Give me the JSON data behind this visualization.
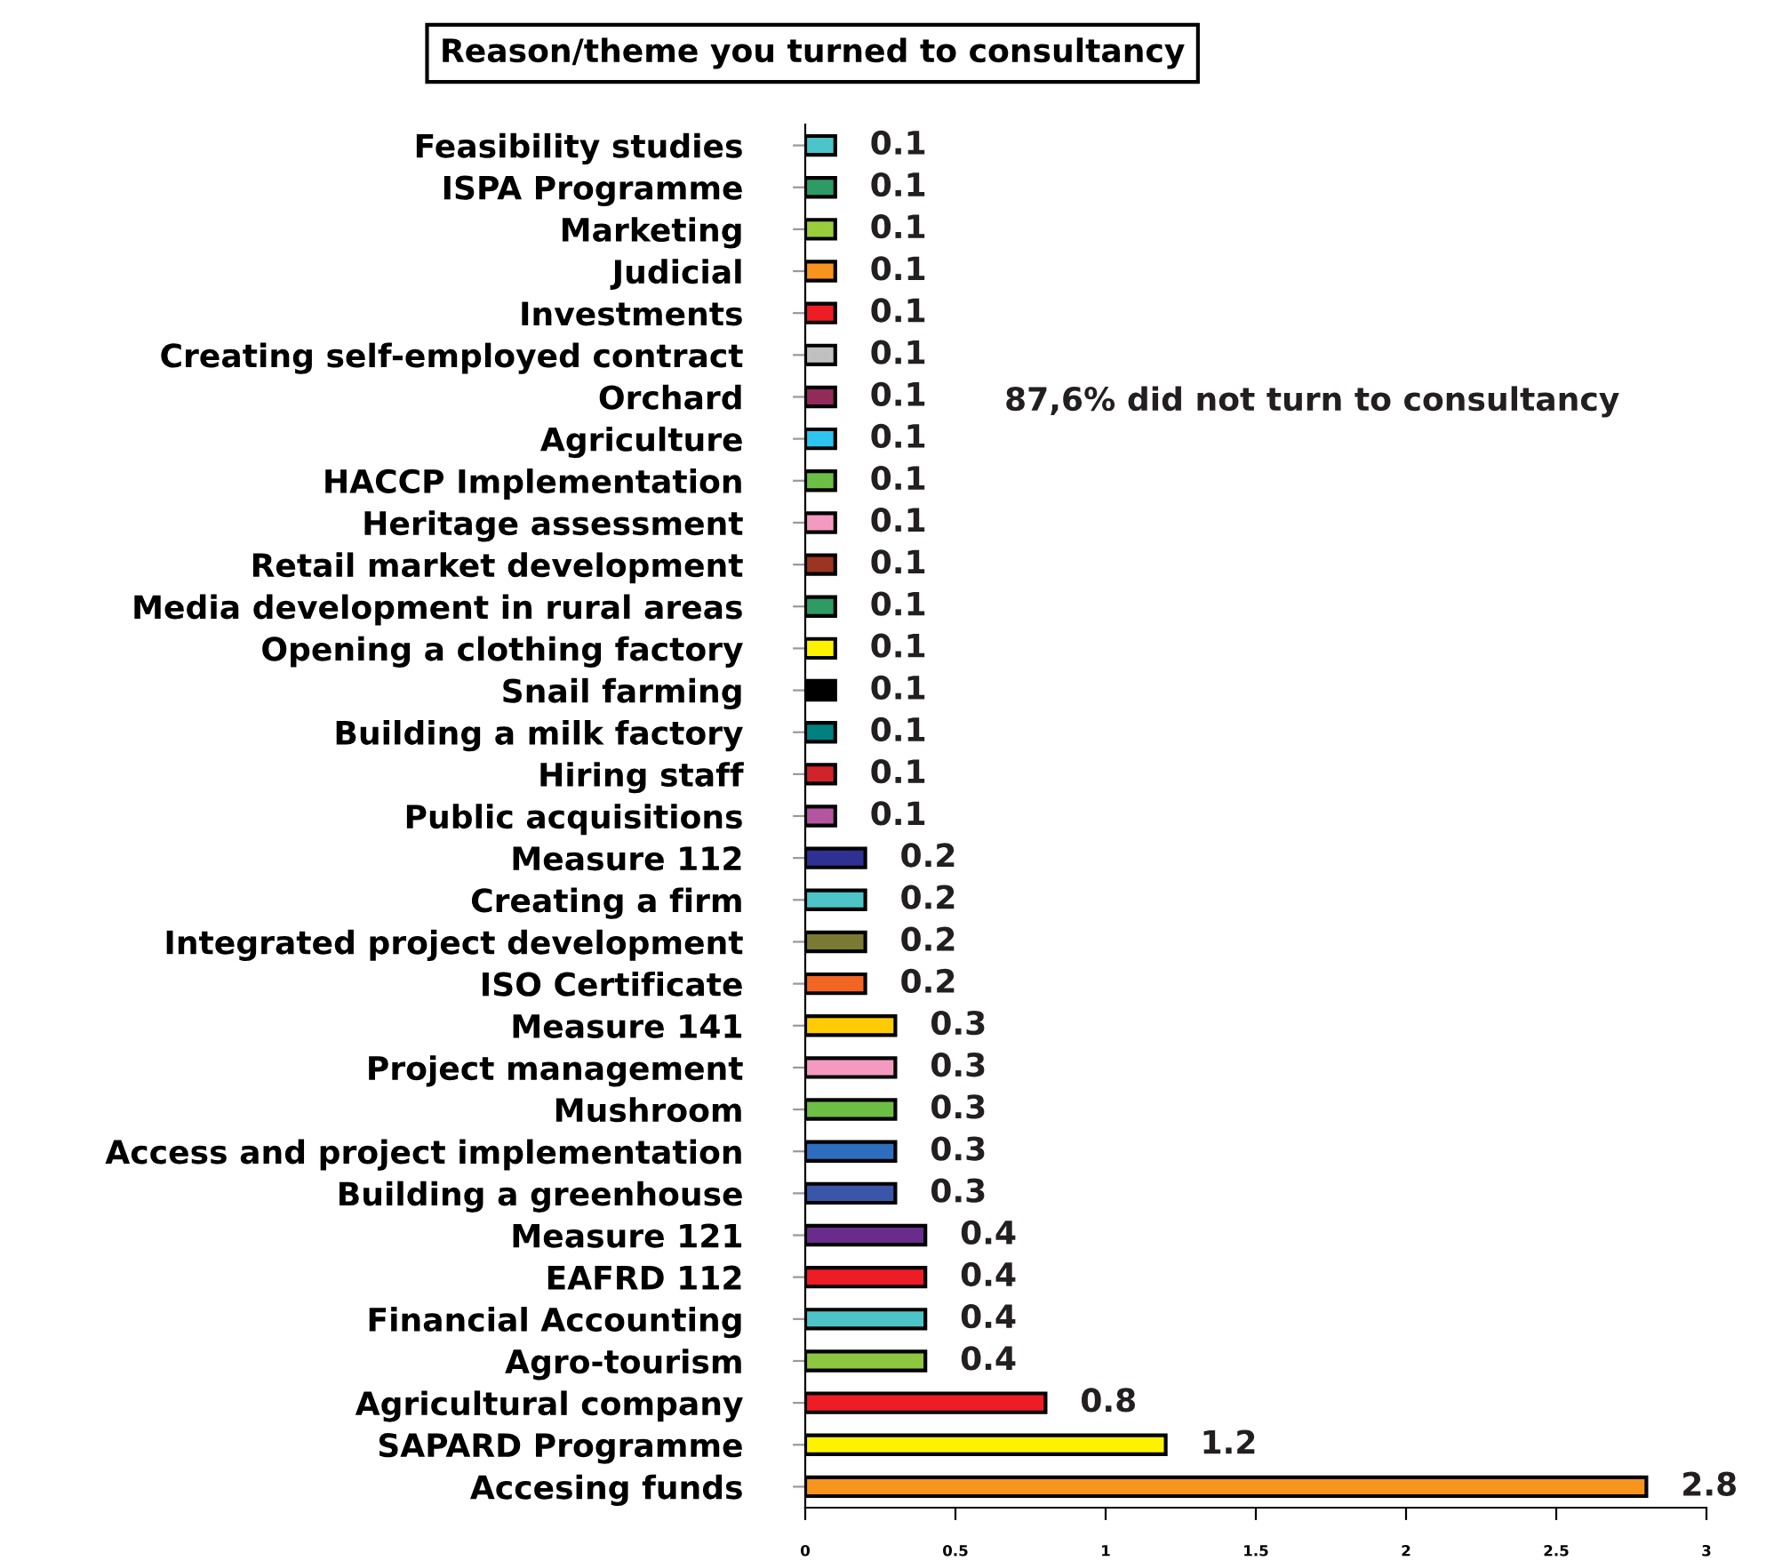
{
  "chart_data": {
    "type": "bar",
    "orientation": "horizontal",
    "title": "Reason/theme you turned to consultancy",
    "categories": [
      "Feasibility studies",
      "ISPA Programme",
      "Marketing",
      "Judicial",
      "Investments",
      "Creating self-employed contract",
      "Orchard",
      "Agriculture",
      "HACCP Implementation",
      "Heritage assessment",
      "Retail market development",
      "Media development in rural areas",
      "Opening a clothing factory",
      "Snail farming",
      "Building a milk factory",
      "Hiring staff",
      "Public acquisitions",
      "Measure 112",
      "Creating a firm",
      "Integrated project development",
      "ISO Certificate",
      "Measure 141",
      "Project management",
      "Mushroom",
      "Access and project implementation",
      "Building a greenhouse",
      "Measure 121",
      "EAFRD 112",
      "Financial Accounting",
      "Agro-tourism",
      "Agricultural company",
      "SAPARD Programme",
      "Accesing funds"
    ],
    "values": [
      0.1,
      0.1,
      0.1,
      0.1,
      0.1,
      0.1,
      0.1,
      0.1,
      0.1,
      0.1,
      0.1,
      0.1,
      0.1,
      0.1,
      0.1,
      0.1,
      0.1,
      0.2,
      0.2,
      0.2,
      0.2,
      0.3,
      0.3,
      0.3,
      0.3,
      0.3,
      0.4,
      0.4,
      0.4,
      0.4,
      0.8,
      1.2,
      2.8
    ],
    "colors": [
      "#4cc4c8",
      "#2e9a64",
      "#9acd3c",
      "#f7941d",
      "#ee1c25",
      "#c0c0c0",
      "#922b5a",
      "#2ec4f0",
      "#6cbf44",
      "#f49ac1",
      "#9b3421",
      "#2e9a64",
      "#fff200",
      "#000000",
      "#008080",
      "#d2232a",
      "#b455a0",
      "#2e3192",
      "#4cc4c8",
      "#7a7a32",
      "#f26522",
      "#ffcb05",
      "#f49ac1",
      "#6cbf44",
      "#2e6ebf",
      "#3a56a8",
      "#6a2c8c",
      "#ee1c25",
      "#4cc4c8",
      "#8dc63f",
      "#ee1c25",
      "#fff200",
      "#f7941d"
    ],
    "xlim": [
      0,
      3
    ],
    "xticks": [
      0,
      0.5,
      1,
      1.5,
      2,
      2.5,
      3
    ],
    "data_labels": true,
    "grid": false,
    "annotations": [
      "87,6% did not turn to consultancy"
    ]
  }
}
